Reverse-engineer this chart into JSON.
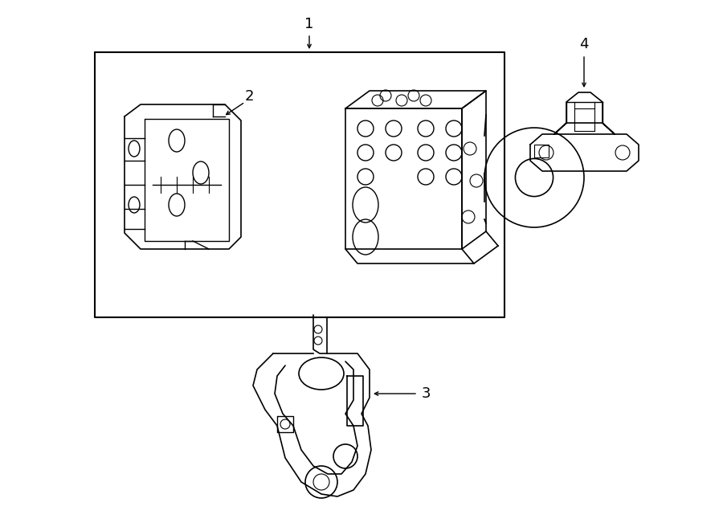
{
  "bg_color": "#ffffff",
  "line_color": "#000000",
  "fig_width": 9.0,
  "fig_height": 6.61,
  "dpi": 100,
  "font_size_labels": 13
}
